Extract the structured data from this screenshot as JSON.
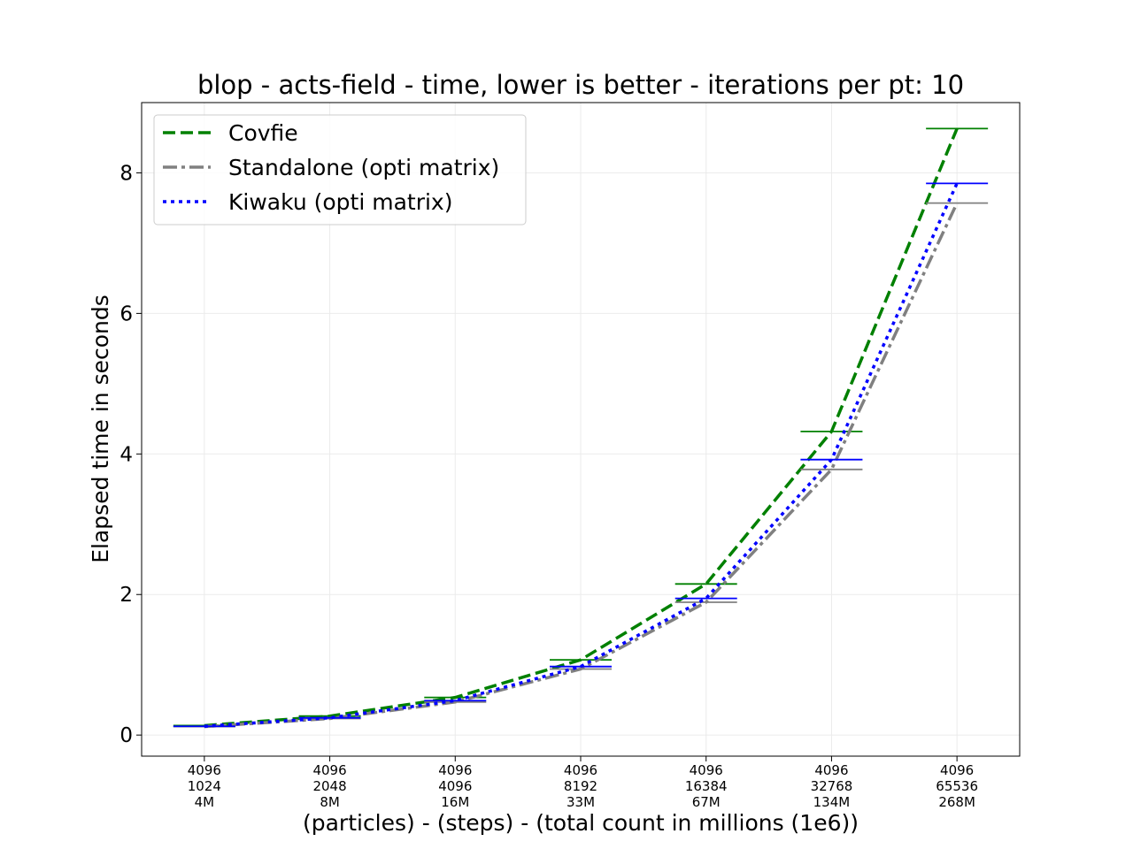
{
  "chart_data": {
    "type": "line",
    "title": "blop - acts-field - time, lower is better - iterations per pt: 10",
    "xlabel": "(particles) - (steps) - (total count in millions (1e6))",
    "ylabel": "Elapsed time in seconds",
    "ylim": [
      -0.3,
      9.0
    ],
    "yticks": [
      0,
      2,
      4,
      6,
      8
    ],
    "grid": true,
    "legend_position": "top-left",
    "categories": [
      [
        "4096",
        "1024",
        "4M"
      ],
      [
        "4096",
        "2048",
        "8M"
      ],
      [
        "4096",
        "4096",
        "16M"
      ],
      [
        "4096",
        "8192",
        "33M"
      ],
      [
        "4096",
        "16384",
        "67M"
      ],
      [
        "4096",
        "32768",
        "134M"
      ],
      [
        "4096",
        "65536",
        "268M"
      ]
    ],
    "series": [
      {
        "name": "Covfie",
        "color": "#008000",
        "dash": "dashed",
        "values": [
          0.135,
          0.27,
          0.535,
          1.07,
          2.15,
          4.32,
          8.63
        ]
      },
      {
        "name": "Standalone (opti matrix)",
        "color": "#808080",
        "dash": "dashdot",
        "values": [
          0.12,
          0.235,
          0.47,
          0.94,
          1.89,
          3.78,
          7.57
        ]
      },
      {
        "name": "Kiwaku (opti matrix)",
        "color": "#0000ff",
        "dash": "dotted",
        "values": [
          0.125,
          0.245,
          0.49,
          0.975,
          1.945,
          3.92,
          7.85
        ]
      }
    ]
  }
}
